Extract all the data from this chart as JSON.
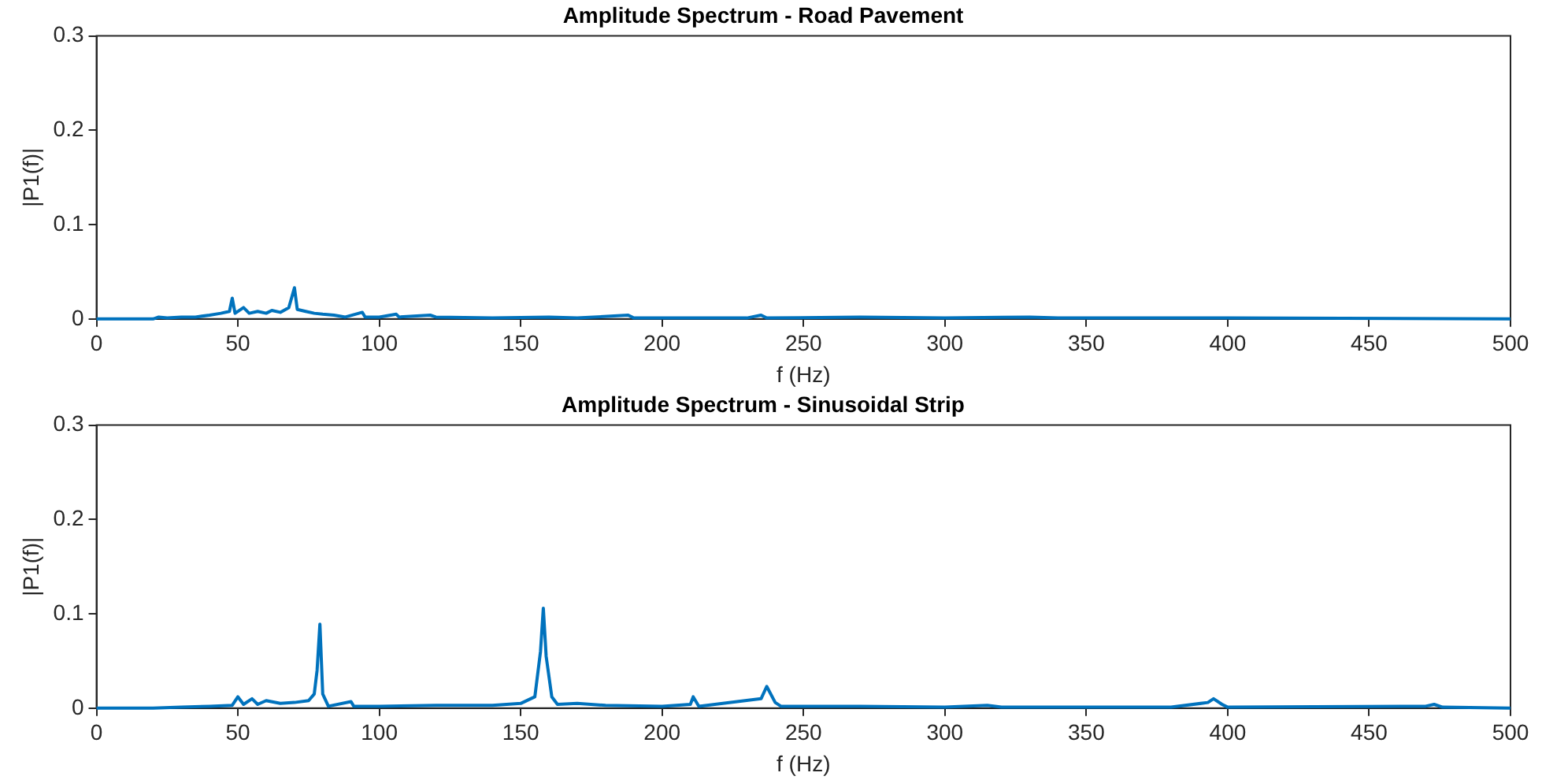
{
  "chart_data": [
    {
      "type": "line",
      "title": "Amplitude Spectrum - Road Pavement",
      "xlabel": "f (Hz)",
      "ylabel": "|P1(f)|",
      "xlim": [
        0,
        500
      ],
      "xticks": [
        0,
        50,
        100,
        150,
        200,
        250,
        300,
        350,
        400,
        450,
        500
      ],
      "ylim": [
        0,
        0.3
      ],
      "yticks": [
        0,
        0.1,
        0.2,
        0.3
      ],
      "grid": false,
      "legend": false,
      "marker": "none",
      "x": [
        0,
        20,
        22,
        25,
        30,
        35,
        40,
        44,
        47,
        48,
        49,
        52,
        54,
        57,
        60,
        62,
        65,
        68,
        70,
        71,
        74,
        77,
        80,
        84,
        88,
        94,
        95,
        100,
        106,
        107,
        118,
        120,
        140,
        160,
        170,
        188,
        190,
        230,
        235,
        237,
        270,
        300,
        330,
        340,
        400,
        500
      ],
      "series": [
        {
          "color": "#0072bd",
          "values": [
            0,
            0,
            0.002,
            0.001,
            0.002,
            0.002,
            0.004,
            0.006,
            0.008,
            0.022,
            0.006,
            0.012,
            0.006,
            0.008,
            0.006,
            0.009,
            0.007,
            0.012,
            0.033,
            0.01,
            0.008,
            0.006,
            0.005,
            0.004,
            0.002,
            0.007,
            0.002,
            0.002,
            0.005,
            0.002,
            0.004,
            0.002,
            0.001,
            0.002,
            0.001,
            0.004,
            0.001,
            0.001,
            0.004,
            0.001,
            0.002,
            0.001,
            0.002,
            0.001,
            0.001,
            0
          ]
        }
      ]
    },
    {
      "type": "line",
      "title": "Amplitude Spectrum - Sinusoidal Strip",
      "xlabel": "f (Hz)",
      "ylabel": "|P1(f)|",
      "xlim": [
        0,
        500
      ],
      "xticks": [
        0,
        50,
        100,
        150,
        200,
        250,
        300,
        350,
        400,
        450,
        500
      ],
      "ylim": [
        0,
        0.3
      ],
      "yticks": [
        0,
        0.1,
        0.2,
        0.3
      ],
      "grid": false,
      "legend": false,
      "marker": "none",
      "x": [
        0,
        20,
        30,
        40,
        48,
        50,
        52,
        55,
        57,
        60,
        65,
        70,
        75,
        77,
        78,
        79,
        80,
        82,
        90,
        91,
        100,
        120,
        140,
        150,
        155,
        157,
        158,
        159,
        161,
        163,
        170,
        180,
        200,
        210,
        211,
        213,
        235,
        237,
        240,
        242,
        270,
        300,
        315,
        320,
        380,
        393,
        395,
        398,
        400,
        470,
        473,
        476,
        500
      ],
      "series": [
        {
          "color": "#0072bd",
          "values": [
            0,
            0,
            0.001,
            0.002,
            0.003,
            0.012,
            0.004,
            0.01,
            0.004,
            0.008,
            0.005,
            0.006,
            0.008,
            0.015,
            0.04,
            0.089,
            0.015,
            0.002,
            0.007,
            0.002,
            0.002,
            0.003,
            0.003,
            0.005,
            0.012,
            0.06,
            0.106,
            0.055,
            0.012,
            0.004,
            0.005,
            0.003,
            0.002,
            0.004,
            0.012,
            0.002,
            0.01,
            0.023,
            0.006,
            0.002,
            0.002,
            0.001,
            0.003,
            0.001,
            0.001,
            0.006,
            0.01,
            0.004,
            0.001,
            0.002,
            0.004,
            0.001,
            0
          ]
        }
      ]
    }
  ]
}
